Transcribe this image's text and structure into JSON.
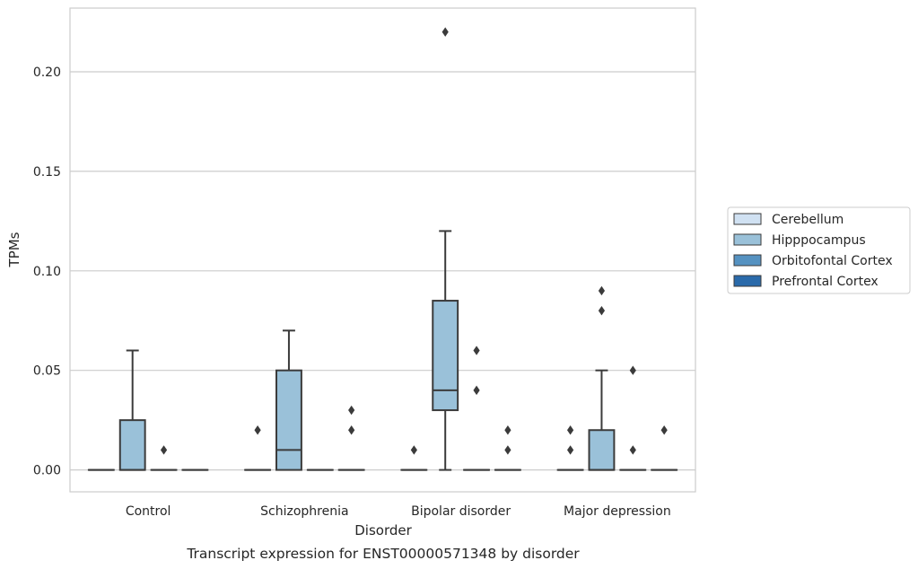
{
  "chart_data": {
    "type": "box",
    "caption": "Transcript expression for ENST00000571348 by disorder",
    "xlabel": "Disorder",
    "ylabel": "TPMs",
    "ylim": [
      -0.011,
      0.232
    ],
    "yticks": [
      0.0,
      0.05,
      0.1,
      0.15,
      0.2
    ],
    "ytick_labels": [
      "0.00",
      "0.05",
      "0.10",
      "0.15",
      "0.20"
    ],
    "grid": "horizontal",
    "legend_position": "right",
    "categories": [
      "Control",
      "Schizophrenia",
      "Bipolar disorder",
      "Major depression"
    ],
    "series": [
      {
        "name": "Cerebellum",
        "color": "#d0e1f2",
        "boxes": [
          {
            "q1": 0,
            "median": 0,
            "q3": 0,
            "whisker_low": 0,
            "whisker_high": 0,
            "outliers": []
          },
          {
            "q1": 0,
            "median": 0,
            "q3": 0,
            "whisker_low": 0,
            "whisker_high": 0,
            "outliers": [
              0.02
            ]
          },
          {
            "q1": 0,
            "median": 0,
            "q3": 0,
            "whisker_low": 0,
            "whisker_high": 0,
            "outliers": [
              0.01
            ]
          },
          {
            "q1": 0,
            "median": 0,
            "q3": 0,
            "whisker_low": 0,
            "whisker_high": 0,
            "outliers": [
              0.01,
              0.02
            ]
          }
        ]
      },
      {
        "name": "Hipppocampus",
        "color": "#9ac1d9",
        "boxes": [
          {
            "q1": 0,
            "median": 0,
            "q3": 0.025,
            "whisker_low": 0,
            "whisker_high": 0.06,
            "outliers": []
          },
          {
            "q1": 0,
            "median": 0.01,
            "q3": 0.05,
            "whisker_low": 0,
            "whisker_high": 0.07,
            "outliers": []
          },
          {
            "q1": 0.03,
            "median": 0.04,
            "q3": 0.085,
            "whisker_low": 0,
            "whisker_high": 0.12,
            "outliers": [
              0.22
            ]
          },
          {
            "q1": 0,
            "median": 0,
            "q3": 0.02,
            "whisker_low": 0,
            "whisker_high": 0.05,
            "outliers": [
              0.08,
              0.09
            ]
          }
        ]
      },
      {
        "name": "Orbitofontal Cortex",
        "color": "#5592c1",
        "boxes": [
          {
            "q1": 0,
            "median": 0,
            "q3": 0,
            "whisker_low": 0,
            "whisker_high": 0,
            "outliers": [
              0.01
            ]
          },
          {
            "q1": 0,
            "median": 0,
            "q3": 0,
            "whisker_low": 0,
            "whisker_high": 0,
            "outliers": []
          },
          {
            "q1": 0,
            "median": 0,
            "q3": 0,
            "whisker_low": 0,
            "whisker_high": 0,
            "outliers": [
              0.04,
              0.06
            ]
          },
          {
            "q1": 0,
            "median": 0,
            "q3": 0,
            "whisker_low": 0,
            "whisker_high": 0,
            "outliers": [
              0.01,
              0.05
            ]
          }
        ]
      },
      {
        "name": "Prefrontal Cortex",
        "color": "#2a6aaa",
        "boxes": [
          {
            "q1": 0,
            "median": 0,
            "q3": 0,
            "whisker_low": 0,
            "whisker_high": 0,
            "outliers": []
          },
          {
            "q1": 0,
            "median": 0,
            "q3": 0,
            "whisker_low": 0,
            "whisker_high": 0,
            "outliers": [
              0.02,
              0.03
            ]
          },
          {
            "q1": 0,
            "median": 0,
            "q3": 0,
            "whisker_low": 0,
            "whisker_high": 0,
            "outliers": [
              0.01,
              0.02
            ]
          },
          {
            "q1": 0,
            "median": 0,
            "q3": 0,
            "whisker_low": 0,
            "whisker_high": 0,
            "outliers": [
              0.02
            ]
          }
        ]
      }
    ]
  }
}
